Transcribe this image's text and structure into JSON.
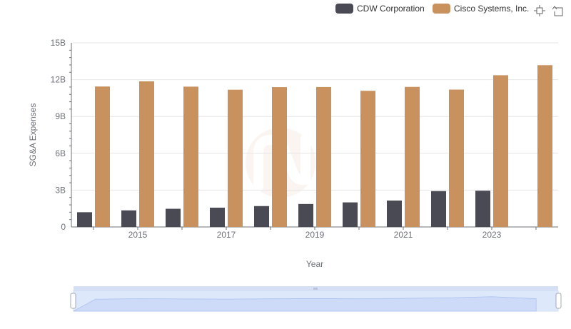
{
  "chart_data": {
    "type": "bar",
    "xlabel": "Year",
    "ylabel": "SG&A Expenses",
    "ylim": [
      0,
      15000000000
    ],
    "y_ticks": [
      "0",
      "3B",
      "6B",
      "9B",
      "12B",
      "15B"
    ],
    "x_ticks": [
      "2015",
      "2017",
      "2019",
      "2021",
      "2023"
    ],
    "categories": [
      "2014",
      "2015",
      "2016",
      "2017",
      "2018",
      "2019",
      "2020",
      "2021",
      "2022",
      "2023",
      "2024"
    ],
    "grid": true,
    "legend_position": "top-right",
    "series": [
      {
        "name": "CDW Corporation",
        "color": "#4a4a55",
        "values": [
          1200000000,
          1350000000,
          1480000000,
          1570000000,
          1700000000,
          1870000000,
          2000000000,
          2150000000,
          2920000000,
          2950000000,
          null
        ]
      },
      {
        "name": "Cisco Systems, Inc.",
        "color": "#c9915e",
        "values": [
          11440000000,
          11860000000,
          11430000000,
          11180000000,
          11390000000,
          11400000000,
          11090000000,
          11410000000,
          11190000000,
          12360000000,
          13180000000
        ]
      }
    ]
  },
  "toolbox": {
    "zoom_icon": "crosshair-zoom-icon",
    "reset_icon": "undo-arrow-icon"
  }
}
